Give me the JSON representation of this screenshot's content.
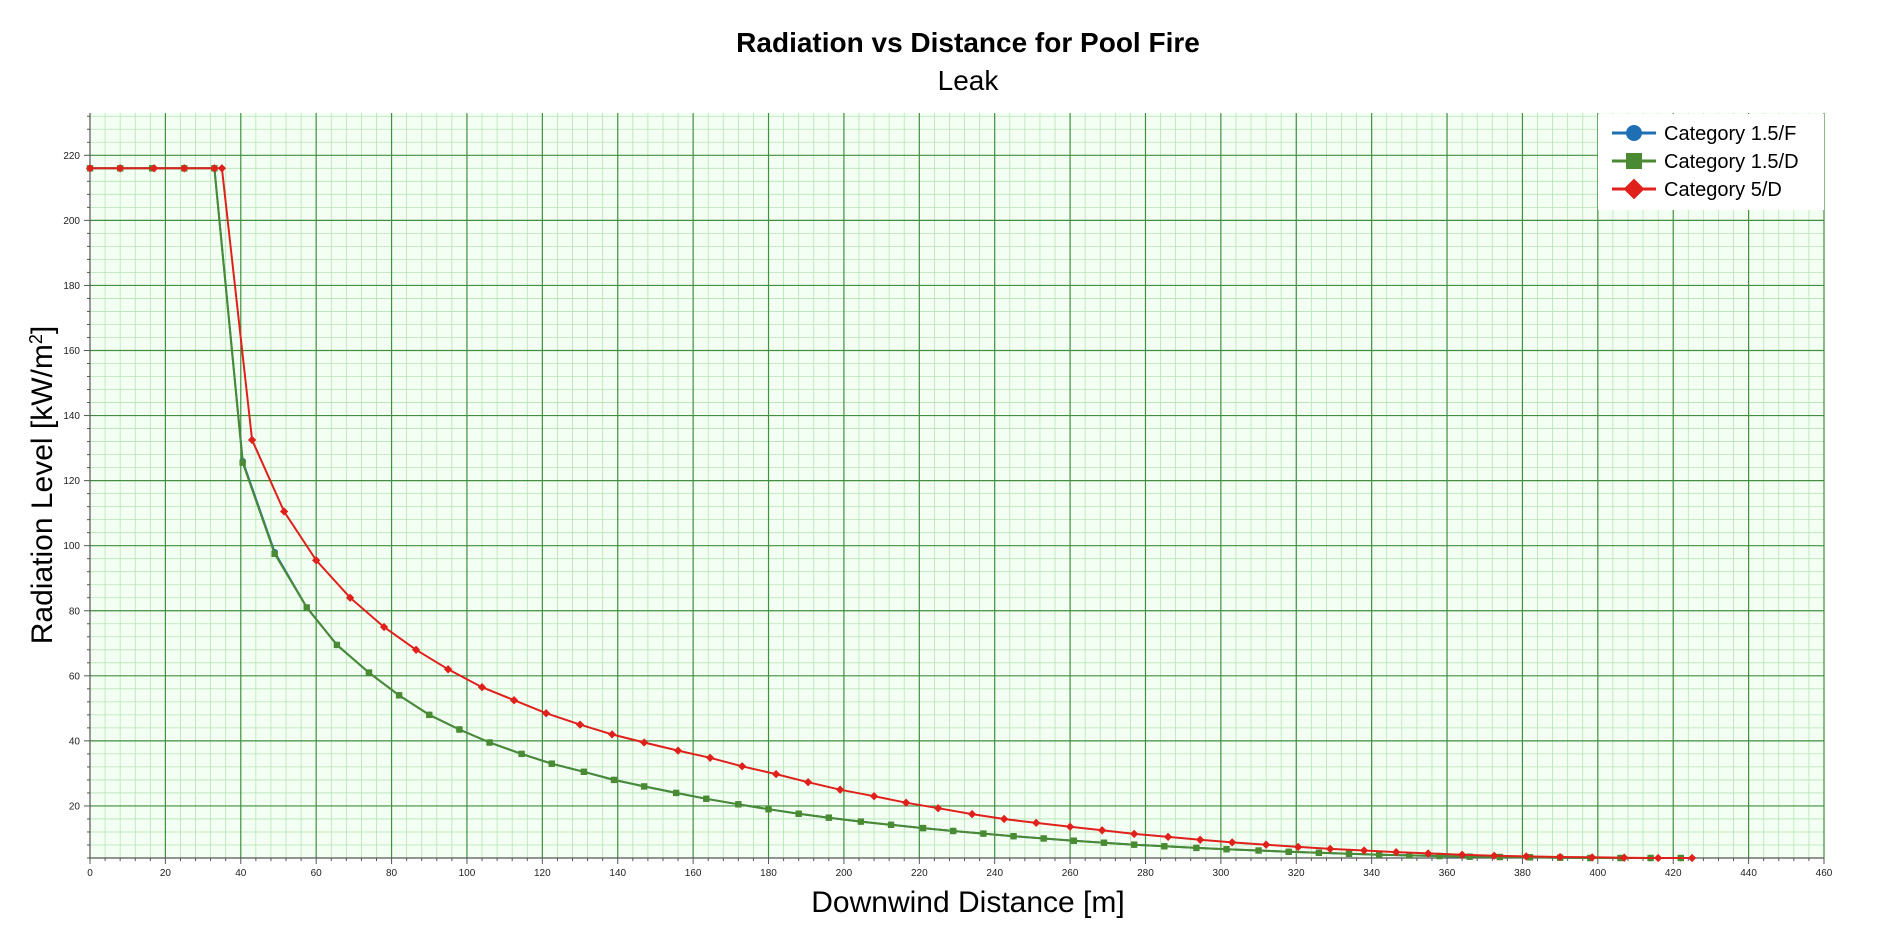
{
  "chart_data": {
    "type": "line",
    "title": "Radiation vs Distance for Pool Fire",
    "subtitle": "Leak",
    "xlabel": "Downwind Distance [m]",
    "ylabel_main": "Radiation Level [kW/m",
    "ylabel_sup": "2",
    "ylabel_end": "]",
    "xlim": [
      0,
      460
    ],
    "ylim": [
      4,
      233
    ],
    "xticks": [
      0,
      20,
      40,
      60,
      80,
      100,
      120,
      140,
      160,
      180,
      200,
      220,
      240,
      260,
      280,
      300,
      320,
      340,
      360,
      380,
      400,
      420,
      440,
      460
    ],
    "yticks": [
      20,
      40,
      60,
      80,
      100,
      120,
      140,
      160,
      180,
      200,
      220
    ],
    "grid": true,
    "legend_position": "top-right",
    "series": [
      {
        "name": "Category 1.5/F",
        "color": "#1f6fb5",
        "marker": "circle",
        "x": [
          0,
          8,
          16.5,
          25,
          33,
          40.5,
          49,
          57.5,
          65.5,
          74,
          82,
          90,
          98,
          106,
          114.5,
          122.5,
          131,
          139,
          147,
          155.5,
          163.5,
          172,
          180,
          188,
          196,
          204.5,
          212.5,
          221,
          229,
          237,
          245,
          253,
          261,
          269,
          277,
          285,
          293.5,
          301.5,
          310,
          318,
          326,
          334,
          342,
          350,
          358,
          366,
          374,
          382,
          390,
          398,
          406,
          414,
          422
        ],
        "y": [
          216,
          216,
          216,
          216,
          216,
          126,
          98,
          81,
          69.5,
          61,
          54,
          48,
          43.5,
          39.5,
          36,
          33,
          30.5,
          28,
          26,
          24,
          22.2,
          20.5,
          19,
          17.6,
          16.4,
          15.2,
          14.2,
          13.2,
          12.3,
          11.5,
          10.7,
          10,
          9.3,
          8.7,
          8.1,
          7.6,
          7.1,
          6.7,
          6.3,
          5.9,
          5.6,
          5.3,
          5.0,
          4.8,
          4.6,
          4.4,
          4.3,
          4.2,
          4.1,
          4.0,
          4.0,
          4.0,
          4.0
        ]
      },
      {
        "name": "Category 1.5/D",
        "color": "#4a8a32",
        "marker": "square",
        "x": [
          0,
          8,
          16.5,
          25,
          33,
          40.5,
          49,
          57.5,
          65.5,
          74,
          82,
          90,
          98,
          106,
          114.5,
          122.5,
          131,
          139,
          147,
          155.5,
          163.5,
          172,
          180,
          188,
          196,
          204.5,
          212.5,
          221,
          229,
          237,
          245,
          253,
          261,
          269,
          277,
          285,
          293.5,
          301.5,
          310,
          318,
          326,
          334,
          342,
          350,
          358,
          366,
          374,
          382,
          390,
          398,
          406,
          414,
          422
        ],
        "y": [
          216,
          216,
          216,
          216,
          216,
          125.5,
          97.5,
          81,
          69.5,
          61,
          54,
          48,
          43.5,
          39.5,
          36,
          33,
          30.5,
          28,
          26,
          24,
          22.2,
          20.5,
          19,
          17.6,
          16.4,
          15.2,
          14.2,
          13.2,
          12.3,
          11.5,
          10.7,
          10,
          9.3,
          8.7,
          8.1,
          7.6,
          7.1,
          6.7,
          6.3,
          5.9,
          5.6,
          5.3,
          5.0,
          4.8,
          4.6,
          4.4,
          4.3,
          4.2,
          4.1,
          4.0,
          4.0,
          4.0,
          4.0
        ]
      },
      {
        "name": "Category 5/D",
        "color": "#e0201b",
        "marker": "diamond",
        "x": [
          0,
          8,
          17,
          25,
          33,
          35,
          43,
          51.5,
          60,
          69,
          78,
          86.5,
          95,
          104,
          112.5,
          121,
          130,
          138.5,
          147,
          156,
          164.5,
          173,
          182,
          190.5,
          199,
          208,
          216.5,
          225,
          234,
          242.5,
          251,
          260,
          268.5,
          277,
          286,
          294.5,
          303,
          312,
          320.5,
          329,
          338,
          346.5,
          355,
          364,
          372.5,
          381,
          390,
          398.5,
          407,
          416,
          425
        ],
        "y": [
          216,
          216,
          216,
          216,
          216,
          216,
          132.5,
          110.5,
          95.5,
          84,
          75,
          68,
          62,
          56.5,
          52.5,
          48.5,
          45,
          42,
          39.5,
          37,
          34.8,
          32.2,
          29.8,
          27.3,
          25,
          23,
          21,
          19.3,
          17.5,
          16,
          14.8,
          13.6,
          12.5,
          11.4,
          10.5,
          9.6,
          8.8,
          8.1,
          7.4,
          6.8,
          6.3,
          5.8,
          5.4,
          5.0,
          4.7,
          4.5,
          4.3,
          4.2,
          4.1,
          4.0,
          4.0
        ]
      }
    ]
  }
}
